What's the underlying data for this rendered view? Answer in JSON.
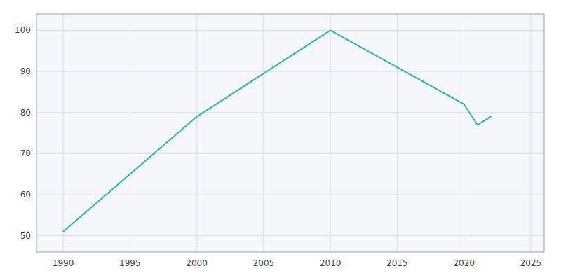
{
  "chart_data": {
    "type": "line",
    "x": [
      1990,
      2000,
      2010,
      2015,
      2020,
      2021,
      2022
    ],
    "values": [
      51,
      79,
      100,
      91,
      82,
      77,
      79
    ],
    "color": "#2ab5b5",
    "xlim": [
      1988,
      2026
    ],
    "ylim": [
      46,
      104
    ],
    "xticks": [
      1990,
      1995,
      2000,
      2005,
      2010,
      2015,
      2020,
      2025
    ],
    "yticks": [
      50,
      60,
      70,
      80,
      90,
      100
    ],
    "grid": true
  }
}
